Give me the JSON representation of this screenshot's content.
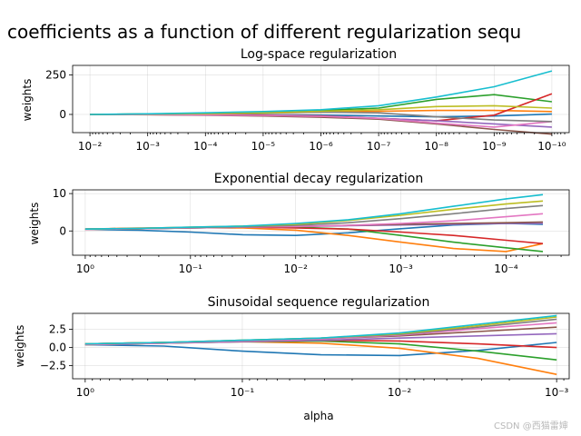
{
  "chart_data": {
    "suptitle": "coefficients as a function of different regularization sequ",
    "xlabel": "alpha",
    "watermark": "CSDN @西猫雷婶",
    "colors": [
      "#1f77b4",
      "#ff7f0e",
      "#2ca02c",
      "#d62728",
      "#9467bd",
      "#8c564b",
      "#e377c2",
      "#7f7f7f",
      "#bcbd22",
      "#17becf"
    ],
    "panels": [
      {
        "type": "line",
        "title": "Log-space regularization",
        "ylabel": "weights",
        "xscale": "log",
        "xdir": "reversed",
        "xlim": [
          -1.7,
          -10.3
        ],
        "ylim": [
          -115,
          310
        ],
        "xticks": [
          -2,
          -3,
          -4,
          -5,
          -6,
          -7,
          -8,
          -9,
          -10
        ],
        "xtick_labels": [
          "10⁻²",
          "10⁻³",
          "10⁻⁴",
          "10⁻⁵",
          "10⁻⁶",
          "10⁻⁷",
          "10⁻⁸",
          "10⁻⁹",
          "10⁻¹⁰"
        ],
        "minor_ticks": true,
        "yticks": [
          250,
          0
        ],
        "ytick_labels": [
          "250",
          "0"
        ],
        "x": [
          -2,
          -3,
          -4,
          -5,
          -6,
          -7,
          -8,
          -9,
          -10
        ],
        "series": [
          {
            "values": [
              0,
              0,
              0,
              -2,
              -5,
              -10,
              -15,
              -10,
              2
            ]
          },
          {
            "values": [
              0,
              2,
              4,
              8,
              15,
              20,
              25,
              25,
              18
            ]
          },
          {
            "values": [
              0,
              3,
              8,
              15,
              25,
              40,
              95,
              125,
              80
            ]
          },
          {
            "values": [
              0,
              0,
              -2,
              -5,
              -10,
              -25,
              -40,
              -5,
              130
            ]
          },
          {
            "values": [
              0,
              -1,
              -3,
              -8,
              -15,
              -25,
              -40,
              -60,
              -80
            ]
          },
          {
            "values": [
              0,
              -2,
              -5,
              -10,
              -18,
              -30,
              -60,
              -95,
              -125
            ]
          },
          {
            "values": [
              0,
              -1,
              -3,
              -6,
              -12,
              -25,
              -55,
              -80,
              -45
            ]
          },
          {
            "values": [
              0,
              2,
              5,
              10,
              15,
              10,
              -15,
              -35,
              -45
            ]
          },
          {
            "values": [
              0,
              2,
              5,
              10,
              20,
              30,
              50,
              55,
              40
            ]
          },
          {
            "values": [
              0,
              4,
              10,
              18,
              30,
              55,
              110,
              175,
              275
            ]
          }
        ]
      },
      {
        "type": "line",
        "title": "Exponential decay regularization",
        "ylabel": "weights",
        "xscale": "log",
        "xdir": "reversed",
        "xlim": [
          0.12,
          -4.6
        ],
        "ylim": [
          -6.5,
          11
        ],
        "xticks": [
          0,
          -1,
          -2,
          -3,
          -4
        ],
        "xtick_labels": [
          "10⁰",
          "10⁻¹",
          "10⁻²",
          "10⁻³",
          "10⁻⁴"
        ],
        "minor_ticks": true,
        "yticks": [
          10,
          0
        ],
        "ytick_labels": [
          "10",
          "0"
        ],
        "x": [
          0,
          -0.5,
          -1,
          -1.5,
          -2,
          -2.5,
          -3,
          -3.5,
          -4,
          -4.35
        ],
        "series": [
          {
            "values": [
              0.4,
              0.2,
              -0.3,
              -1,
              -1.2,
              -0.5,
              0.6,
              1.6,
              2,
              1.8
            ]
          },
          {
            "values": [
              0.5,
              0.8,
              0.9,
              0.8,
              0.2,
              -1.2,
              -3,
              -4.7,
              -5.5,
              -3.4
            ]
          },
          {
            "values": [
              0.4,
              0.6,
              0.8,
              1,
              1,
              0.5,
              -1.2,
              -3,
              -4.5,
              -5.5
            ]
          },
          {
            "values": [
              0.5,
              0.7,
              0.9,
              1,
              0.8,
              0.5,
              -0.3,
              -1.2,
              -2.5,
              -3.4
            ]
          },
          {
            "values": [
              0.5,
              0.6,
              0.8,
              1,
              1.2,
              1.4,
              1.6,
              1.8,
              2,
              2
            ]
          },
          {
            "values": [
              0.4,
              0.6,
              0.8,
              1,
              1.2,
              1.5,
              1.8,
              2,
              2.2,
              2.4
            ]
          },
          {
            "values": [
              0.4,
              0.6,
              0.8,
              1,
              1.2,
              1.5,
              2,
              2.7,
              3.8,
              4.6
            ]
          },
          {
            "values": [
              0.5,
              0.7,
              0.9,
              1.1,
              1.5,
              2.2,
              3.3,
              4.6,
              6,
              6.8
            ]
          },
          {
            "values": [
              0.5,
              0.7,
              1,
              1.3,
              1.8,
              2.8,
              4.2,
              5.8,
              7.2,
              8
            ]
          },
          {
            "values": [
              0.5,
              0.7,
              1,
              1.3,
              2,
              3,
              4.6,
              6.6,
              8.6,
              9.7
            ]
          }
        ]
      },
      {
        "type": "line",
        "title": "Sinusoidal sequence regularization",
        "ylabel": "weights",
        "xscale": "log",
        "xdir": "reversed",
        "xlim": [
          0.08,
          -3.08
        ],
        "ylim": [
          -4.3,
          4.7
        ],
        "xticks": [
          0,
          -1,
          -2,
          -3
        ],
        "xtick_labels": [
          "10⁰",
          "10⁻¹",
          "10⁻²",
          "10⁻³"
        ],
        "minor_ticks": true,
        "yticks": [
          2.5,
          0.0,
          -2.5
        ],
        "ytick_labels": [
          "2.5",
          "0.0",
          "−2.5"
        ],
        "x": [
          0,
          -0.5,
          -1,
          -1.5,
          -2,
          -2.5,
          -3
        ],
        "series": [
          {
            "values": [
              0.4,
              0.2,
              -0.5,
              -1,
              -1.1,
              -0.4,
              0.7
            ]
          },
          {
            "values": [
              0.5,
              0.7,
              0.8,
              0.6,
              -0.1,
              -1.5,
              -3.7
            ]
          },
          {
            "values": [
              0.4,
              0.6,
              0.8,
              0.9,
              0.5,
              -0.5,
              -1.7
            ]
          },
          {
            "values": [
              0.5,
              0.7,
              0.9,
              1,
              0.9,
              0.5,
              0
            ]
          },
          {
            "values": [
              0.5,
              0.6,
              0.8,
              1,
              1.3,
              1.6,
              1.9
            ]
          },
          {
            "values": [
              0.4,
              0.6,
              0.9,
              1.2,
              1.6,
              2.2,
              2.8
            ]
          },
          {
            "values": [
              0.4,
              0.6,
              0.9,
              1.2,
              1.7,
              2.6,
              3.4
            ]
          },
          {
            "values": [
              0.5,
              0.7,
              1,
              1.3,
              1.8,
              2.8,
              3.9
            ]
          },
          {
            "values": [
              0.5,
              0.7,
              1,
              1.3,
              1.9,
              3,
              4.2
            ]
          },
          {
            "values": [
              0.5,
              0.7,
              1,
              1.3,
              2,
              3.2,
              4.4
            ]
          }
        ]
      }
    ]
  }
}
